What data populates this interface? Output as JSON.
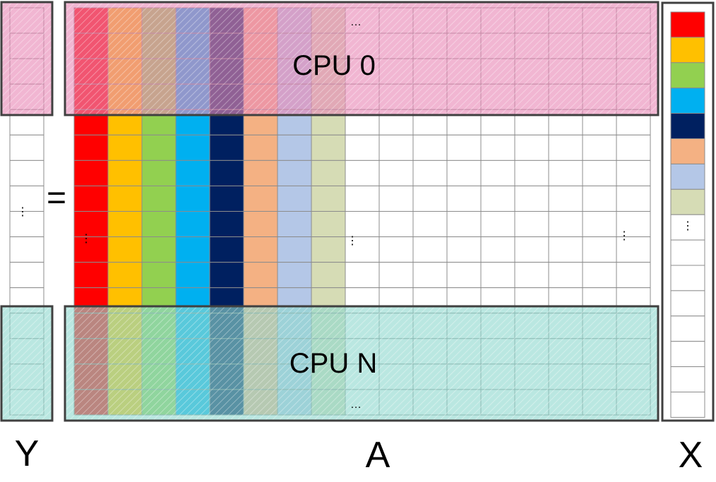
{
  "labels": {
    "y": "Y",
    "a": "A",
    "x": "X",
    "equals": "=",
    "cpu_top": "CPU 0",
    "cpu_bottom": "CPU N",
    "ellipsis_h": "…",
    "ellipsis_v": "⋮"
  },
  "column_colors": [
    "#ff0000",
    "#ffc000",
    "#92d050",
    "#00b0f0",
    "#002060",
    "#f4b183",
    "#b4c7e7",
    "#d6dcb5"
  ],
  "highlight_colors": {
    "cpu_top": "#e889b6",
    "cpu_bottom": "#8fd8cf",
    "border": "#404040"
  }
}
